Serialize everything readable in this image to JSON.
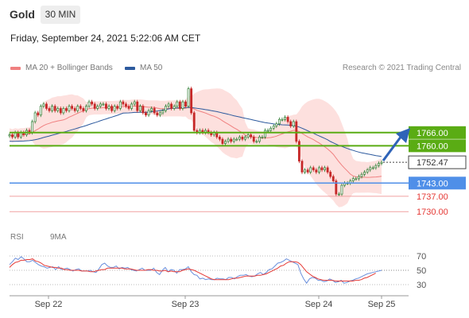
{
  "header": {
    "instrument": "Gold",
    "timeframe": "30 MIN",
    "datetime": "Friday, September 24, 2021 5:22:06 AM CET"
  },
  "legend": {
    "ma20": "MA 20 + Bollinger Bands",
    "ma50": "MA 50",
    "credit": "Research © 2021 Trading Central"
  },
  "rsi_legend": {
    "rsi": "RSI",
    "ma9": "9MA"
  },
  "colors": {
    "up": "#2e7d32",
    "down": "#c62828",
    "ma20": "#f08080",
    "bollinger": "#fde0de",
    "ma50": "#2d5a9e",
    "resistance": "#5aac14",
    "support": "#4f8fe8",
    "minor_support": "#f0a0a0",
    "rsi": "#6a8fdc",
    "rsi_ma": "#e53935",
    "arrow": "#2f63b8"
  },
  "chart_data": [
    {
      "type": "candlestick",
      "title": "Gold 30 MIN",
      "x_ticks": [
        "Sep 22",
        "Sep 23",
        "Sep 24",
        "Sep 25"
      ],
      "ylim": [
        1725,
        1792
      ],
      "levels": [
        {
          "value": 1766.0,
          "label": "1766.00",
          "kind": "resistance"
        },
        {
          "value": 1760.0,
          "label": "1760.00",
          "kind": "resistance"
        },
        {
          "value": 1752.47,
          "label": "1752.47",
          "kind": "last"
        },
        {
          "value": 1743.0,
          "label": "1743.00",
          "kind": "support"
        },
        {
          "value": 1737.0,
          "label": "1737.00",
          "kind": "minor_support"
        },
        {
          "value": 1730.0,
          "label": "1730.00",
          "kind": "minor_support"
        }
      ],
      "closes": [
        1765,
        1764,
        1766,
        1764,
        1766,
        1765,
        1767,
        1766,
        1771,
        1775,
        1774,
        1778,
        1779,
        1777,
        1776,
        1778,
        1776,
        1777,
        1775,
        1777,
        1776,
        1778,
        1777,
        1776,
        1778,
        1777,
        1776,
        1778,
        1780,
        1779,
        1777,
        1778,
        1779,
        1779,
        1777,
        1778,
        1776,
        1778,
        1777,
        1780,
        1779,
        1778,
        1777,
        1779,
        1780,
        1776,
        1778,
        1775,
        1774,
        1776,
        1777,
        1775,
        1774,
        1775,
        1776,
        1778,
        1779,
        1777,
        1778,
        1780,
        1777,
        1780,
        1778,
        1786,
        1775,
        1767,
        1766,
        1767,
        1766,
        1767,
        1766,
        1765,
        1766,
        1764,
        1763,
        1761,
        1762,
        1763,
        1762,
        1763,
        1763,
        1764,
        1763,
        1764,
        1765,
        1764,
        1762,
        1762,
        1764,
        1764,
        1767,
        1767,
        1768,
        1769,
        1770,
        1772,
        1772,
        1773,
        1771,
        1769,
        1771,
        1762,
        1753,
        1748,
        1749,
        1748,
        1750,
        1749,
        1748,
        1750,
        1749,
        1750,
        1748,
        1746,
        1744,
        1738,
        1738,
        1742,
        1743,
        1743,
        1744,
        1745,
        1745,
        1746,
        1747,
        1748,
        1749,
        1750,
        1750,
        1751,
        1752,
        1752.5
      ],
      "ma50_start": 1762,
      "ma50_end": 1756,
      "rsi": {
        "ylim": [
          20,
          80
        ],
        "ticks": [
          70,
          50,
          30
        ],
        "values": [
          58,
          62,
          67,
          65,
          69,
          66,
          62,
          62,
          64,
          61,
          58,
          56,
          55,
          53,
          54,
          55,
          51,
          55,
          51,
          52,
          53,
          51,
          49,
          51,
          52,
          49,
          49,
          49,
          50,
          48,
          47,
          52,
          58,
          60,
          56,
          54,
          54,
          56,
          52,
          54,
          53,
          54,
          51,
          50,
          49,
          51,
          53,
          50,
          50,
          50,
          53,
          47,
          44,
          50,
          54,
          48,
          51,
          50,
          46,
          51,
          51,
          52,
          55,
          48,
          44,
          43,
          38,
          39,
          37,
          38,
          37,
          37,
          39,
          38,
          38,
          37,
          40,
          40,
          38,
          41,
          43,
          43,
          44,
          42,
          41,
          42,
          45,
          47,
          44,
          47,
          51,
          52,
          56,
          60,
          61,
          63,
          66,
          64,
          62,
          60,
          58,
          46,
          38,
          32,
          38,
          40,
          39,
          36,
          36,
          34,
          35,
          38,
          36,
          33,
          34,
          36,
          32,
          33,
          35,
          36,
          38,
          39,
          41,
          43,
          45,
          46,
          47,
          48,
          49,
          50
        ],
        "ma_values": [
          54,
          58,
          61,
          62,
          64,
          64,
          65,
          65,
          66,
          63,
          62,
          60,
          57,
          56,
          55,
          54,
          54,
          53,
          53,
          51,
          51,
          50,
          50,
          50,
          50,
          49,
          49,
          49,
          48,
          48,
          49,
          50,
          51,
          51,
          53,
          53,
          53,
          53,
          53,
          53,
          52,
          52,
          52,
          51,
          50,
          50,
          50,
          50,
          51,
          51,
          50,
          50,
          49,
          49,
          50,
          48,
          49,
          48,
          48,
          48,
          50,
          51,
          52,
          51,
          50,
          48,
          46,
          44,
          42,
          40,
          38,
          37,
          37,
          37,
          37,
          37,
          37,
          38,
          39,
          39,
          40,
          41,
          42,
          42,
          42,
          42,
          43,
          43,
          44,
          45,
          47,
          49,
          51,
          53,
          56,
          57,
          60,
          62,
          62,
          62,
          61,
          58,
          53,
          48,
          45,
          42,
          40,
          38,
          37,
          36,
          36,
          36,
          36,
          35,
          35,
          35,
          35,
          35,
          35,
          35,
          36,
          36,
          37,
          39,
          40,
          42,
          44,
          46
        ]
      }
    }
  ]
}
